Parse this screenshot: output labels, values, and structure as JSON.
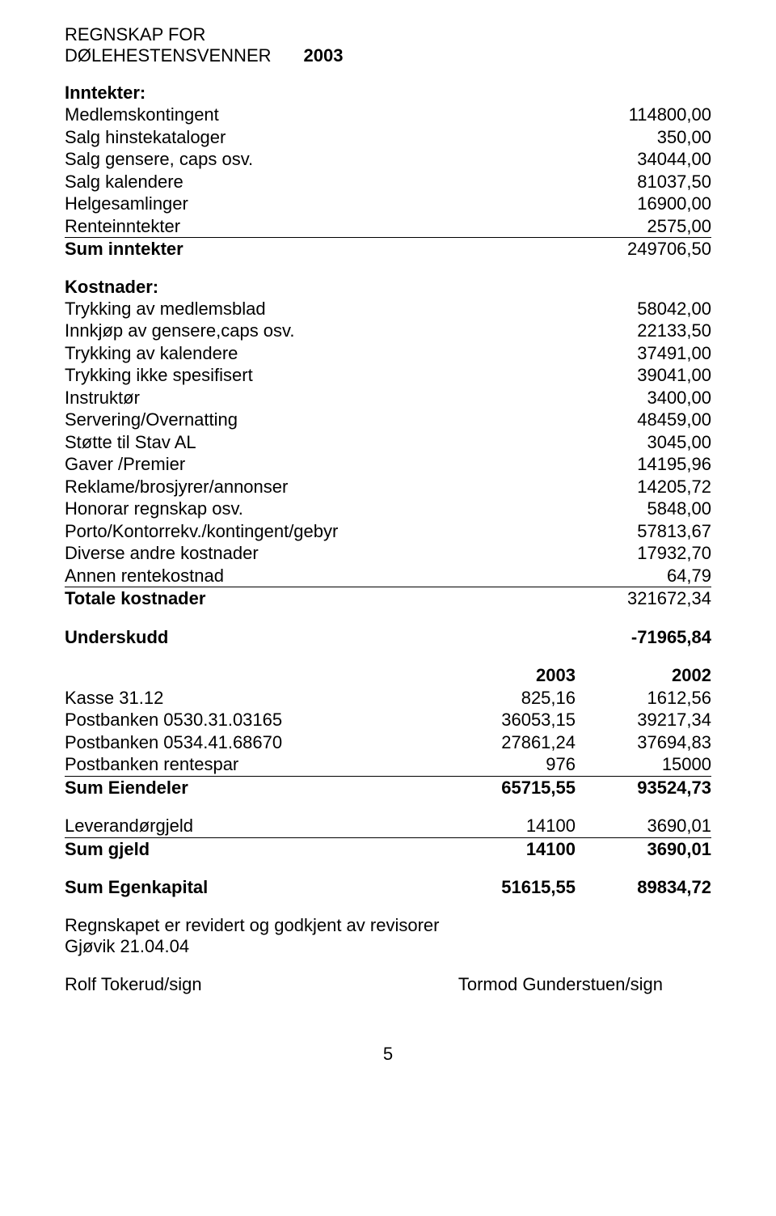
{
  "title_line1": "REGNSKAP FOR",
  "title_line2": "DØLEHESTENSVENNER",
  "title_year": "2003",
  "inntekter_heading": "Inntekter:",
  "inntekter": [
    {
      "label": "Medlemskontingent",
      "value": "114800,00"
    },
    {
      "label": "Salg hinstekataloger",
      "value": "350,00"
    },
    {
      "label": "Salg gensere, caps osv.",
      "value": "34044,00"
    },
    {
      "label": "Salg kalendere",
      "value": "81037,50"
    },
    {
      "label": "Helgesamlinger",
      "value": "16900,00"
    }
  ],
  "renteinntekter": {
    "label": "Renteinntekter",
    "value": "2575,00"
  },
  "sum_inntekter": {
    "label": "Sum inntekter",
    "value": "249706,50"
  },
  "kostnader_heading": "Kostnader:",
  "kostnader": [
    {
      "label": "Trykking av medlemsblad",
      "value": "58042,00"
    },
    {
      "label": "Innkjøp av gensere,caps osv.",
      "value": "22133,50"
    },
    {
      "label": "Trykking av kalendere",
      "value": "37491,00"
    },
    {
      "label": "Trykking ikke spesifisert",
      "value": "39041,00"
    },
    {
      "label": "Instruktør",
      "value": "3400,00"
    },
    {
      "label": "Servering/Overnatting",
      "value": "48459,00"
    },
    {
      "label": "Støtte til Stav AL",
      "value": "3045,00"
    },
    {
      "label": "Gaver /Premier",
      "value": "14195,96"
    },
    {
      "label": "Reklame/brosjyrer/annonser",
      "value": "14205,72"
    },
    {
      "label": "Honorar regnskap osv.",
      "value": "5848,00"
    },
    {
      "label": "Porto/Kontorrekv./kontingent/gebyr",
      "value": "57813,67"
    },
    {
      "label": "Diverse andre kostnader",
      "value": "17932,70"
    }
  ],
  "annen_rentekostnad": {
    "label": "Annen rentekostnad",
    "value": "64,79"
  },
  "totale_kostnader": {
    "label": "Totale kostnader",
    "value": "321672,34"
  },
  "underskudd": {
    "label": "Underskudd",
    "value": "-71965,84"
  },
  "balance_header": {
    "c2": "2003",
    "c3": "2002"
  },
  "balance_rows": [
    {
      "c1": "Kasse 31.12",
      "c2": "825,16",
      "c3": "1612,56"
    },
    {
      "c1": "Postbanken 0530.31.03165",
      "c2": "36053,15",
      "c3": "39217,34"
    },
    {
      "c1": "Postbanken 0534.41.68670",
      "c2": "27861,24",
      "c3": "37694,83"
    }
  ],
  "postbanken_rentespar": {
    "c1": "Postbanken rentespar",
    "c2": "976",
    "c3": "15000"
  },
  "sum_eiendeler": {
    "c1": "Sum Eiendeler",
    "c2": "65715,55",
    "c3": "93524,73"
  },
  "leverandorgjeld": {
    "c1": "Leverandørgjeld",
    "c2": "14100",
    "c3": "3690,01"
  },
  "sum_gjeld": {
    "c1": "Sum gjeld",
    "c2": "14100",
    "c3": "3690,01"
  },
  "sum_egenkapital": {
    "c1": "Sum Egenkapital",
    "c2": "51615,55",
    "c3": "89834,72"
  },
  "revidert_line1": "Regnskapet er revidert og godkjent av revisorer",
  "revidert_line2": "Gjøvik 21.04.04",
  "sign1": "Rolf Tokerud/sign",
  "sign2": "Tormod Gunderstuen/sign",
  "page_number": "5"
}
